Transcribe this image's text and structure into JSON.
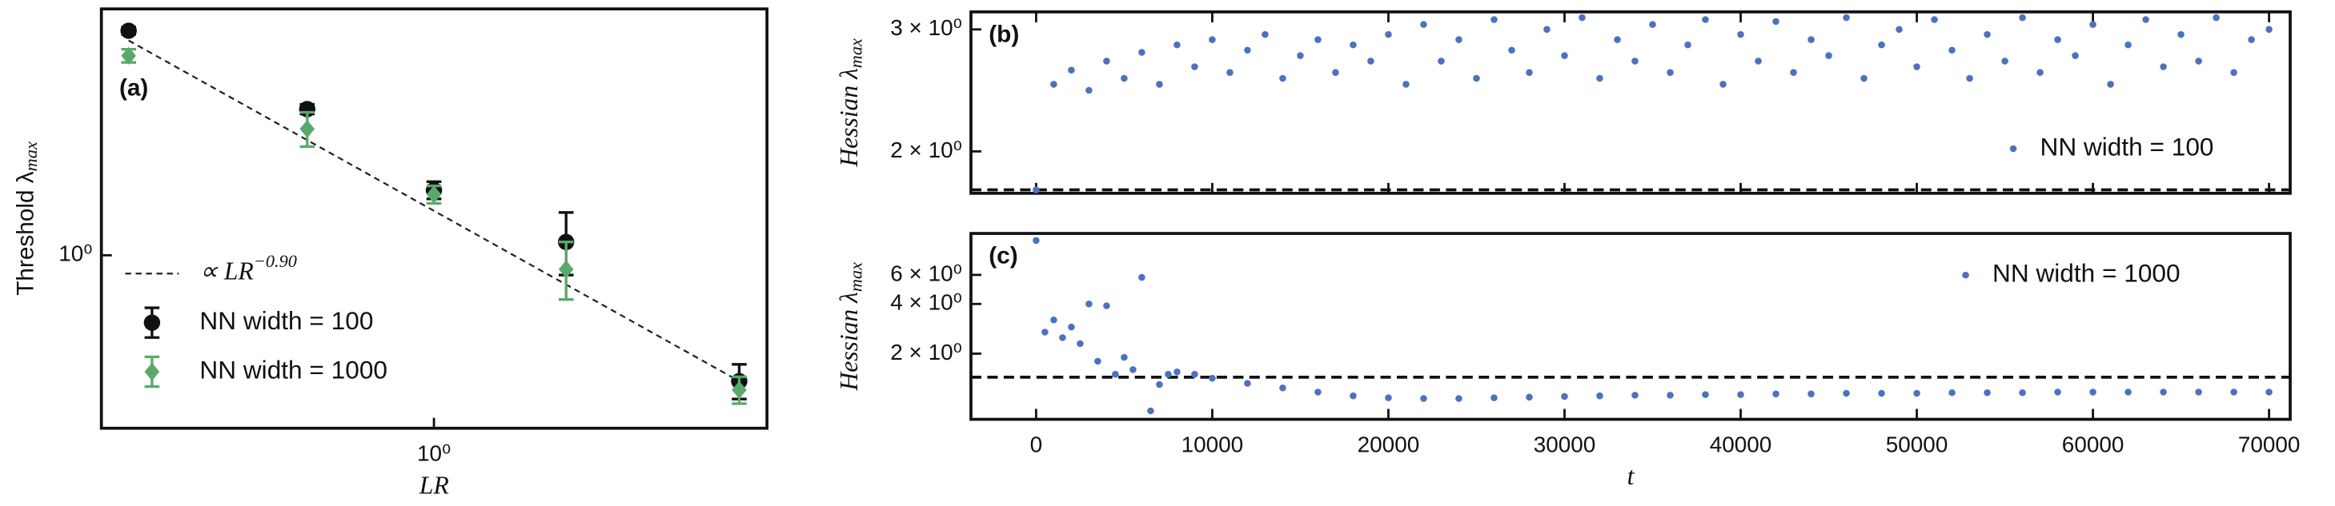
{
  "chart_data": [
    {
      "type": "errorbar",
      "panel_label": "(a)",
      "xlabel": "LR",
      "ylabel": "Threshold λ",
      "ylabel_sub": "max",
      "log_x": true,
      "log_y": true,
      "xlim": [
        0.47,
        2.13
      ],
      "ylim": [
        0.53,
        2.47
      ],
      "xticks": [
        {
          "value": 1,
          "label": "10⁰"
        }
      ],
      "yticks": [
        {
          "value": 1,
          "label": "10⁰"
        }
      ],
      "legend": "lower left",
      "fit": {
        "name": "∝ LR",
        "exponent": "−0.90",
        "color": "#222222",
        "x": [
          0.5,
          2
        ],
        "values": [
          2.2,
          0.63
        ]
      },
      "series": [
        {
          "name": "NN width = 100",
          "color": "#111111",
          "marker": "o",
          "x": [
            0.5,
            0.75,
            1,
            1.35,
            2
          ],
          "values": [
            2.28,
            1.71,
            1.27,
            1.05,
            0.63
          ],
          "errors": [
            0.03,
            0.03,
            0.04,
            0.12,
            0.04
          ]
        },
        {
          "name": "NN width = 1000",
          "color": "#5aa96a",
          "marker": "D",
          "x": [
            0.5,
            0.75,
            1,
            1.35,
            2
          ],
          "values": [
            2.08,
            1.59,
            1.25,
            0.95,
            0.61
          ],
          "errors": [
            0.05,
            0.1,
            0.04,
            0.1,
            0.03
          ]
        }
      ]
    },
    {
      "type": "scatter",
      "panel_label": "(b)",
      "ylabel": "Hessian λ",
      "ylabel_sub": "max",
      "log_y": true,
      "xlim": [
        -3700,
        71200
      ],
      "ylim": [
        1.74,
        3.18
      ],
      "yticks": [
        {
          "value": 2,
          "label": "2 × 10⁰"
        },
        {
          "value": 3,
          "label": "3 × 10⁰"
        }
      ],
      "threshold": 1.76,
      "legend": "lower right",
      "series": [
        {
          "name": "NN width = 100",
          "color": "#4a72c0",
          "x": [
            0,
            1000,
            2000,
            3000,
            4000,
            5000,
            6000,
            7000,
            8000,
            9000,
            10000,
            11000,
            12000,
            13000,
            14000,
            15000,
            16000,
            17000,
            18000,
            19000,
            20000,
            21000,
            22000,
            23000,
            24000,
            25000,
            26000,
            27000,
            28000,
            29000,
            30000,
            31000,
            32000,
            33000,
            34000,
            35000,
            36000,
            37000,
            38000,
            39000,
            40000,
            41000,
            42000,
            43000,
            44000,
            45000,
            46000,
            47000,
            48000,
            49000,
            50000,
            51000,
            52000,
            53000,
            54000,
            55000,
            56000,
            57000,
            58000,
            59000,
            60000,
            61000,
            62000,
            63000,
            64000,
            65000,
            66000,
            67000,
            68000,
            69000,
            70000
          ],
          "values": [
            1.76,
            2.5,
            2.62,
            2.45,
            2.7,
            2.55,
            2.78,
            2.5,
            2.85,
            2.65,
            2.9,
            2.6,
            2.8,
            2.95,
            2.55,
            2.75,
            2.9,
            2.6,
            2.85,
            2.7,
            2.95,
            2.5,
            3.05,
            2.7,
            2.9,
            2.55,
            3.1,
            2.8,
            2.6,
            3.0,
            2.75,
            3.12,
            2.55,
            2.9,
            2.7,
            3.05,
            2.6,
            2.85,
            3.1,
            2.5,
            2.95,
            2.7,
            3.08,
            2.6,
            2.9,
            2.75,
            3.12,
            2.55,
            2.85,
            3.0,
            2.65,
            3.1,
            2.8,
            2.55,
            2.95,
            2.7,
            3.12,
            2.6,
            2.9,
            2.75,
            3.05,
            2.5,
            2.85,
            3.1,
            2.65,
            2.95,
            2.7,
            3.12,
            2.6,
            2.9,
            3.0
          ]
        }
      ]
    },
    {
      "type": "scatter",
      "panel_label": "(c)",
      "xlabel": "t",
      "ylabel": "Hessian λ",
      "ylabel_sub": "max",
      "log_y": true,
      "xlim": [
        -3700,
        71200
      ],
      "ylim": [
        0.8,
        10.7
      ],
      "xticks": [
        0,
        10000,
        20000,
        30000,
        40000,
        50000,
        60000,
        70000
      ],
      "yticks": [
        {
          "value": 2,
          "label": "2 × 10⁰"
        },
        {
          "value": 4,
          "label": "4 × 10⁰"
        },
        {
          "value": 6,
          "label": "6 × 10⁰"
        }
      ],
      "threshold": 1.44,
      "legend": "upper right",
      "series": [
        {
          "name": "NN width = 1000",
          "color": "#4a72c0",
          "x": [
            0,
            500,
            1000,
            1500,
            2000,
            2500,
            3000,
            3500,
            4000,
            4500,
            5000,
            5500,
            6000,
            6500,
            7000,
            7500,
            8000,
            9000,
            10000,
            12000,
            14000,
            16000,
            18000,
            20000,
            22000,
            24000,
            26000,
            28000,
            30000,
            32000,
            34000,
            36000,
            38000,
            40000,
            42000,
            44000,
            46000,
            48000,
            50000,
            52000,
            54000,
            56000,
            58000,
            60000,
            62000,
            64000,
            66000,
            68000,
            70000
          ],
          "values": [
            9.7,
            2.7,
            3.2,
            2.5,
            2.9,
            2.3,
            4.0,
            1.8,
            3.9,
            1.5,
            1.9,
            1.6,
            5.8,
            0.9,
            1.3,
            1.5,
            1.55,
            1.5,
            1.42,
            1.32,
            1.24,
            1.17,
            1.11,
            1.08,
            1.07,
            1.07,
            1.08,
            1.09,
            1.1,
            1.11,
            1.12,
            1.12,
            1.13,
            1.13,
            1.14,
            1.14,
            1.15,
            1.15,
            1.15,
            1.16,
            1.16,
            1.16,
            1.17,
            1.17,
            1.17,
            1.17,
            1.17,
            1.17,
            1.17
          ]
        }
      ]
    }
  ]
}
